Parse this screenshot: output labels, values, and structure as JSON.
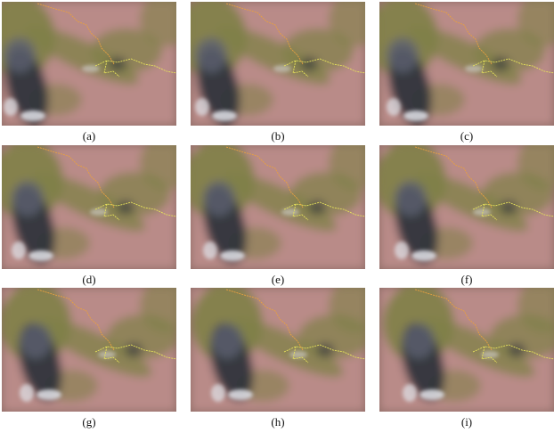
{
  "figure": {
    "panels": [
      {
        "label": "(a)"
      },
      {
        "label": "(b)"
      },
      {
        "label": "(c)"
      },
      {
        "label": "(d)"
      },
      {
        "label": "(e)"
      },
      {
        "label": "(f)"
      },
      {
        "label": "(g)"
      },
      {
        "label": "(h)"
      },
      {
        "label": "(i)"
      }
    ]
  },
  "colors": {
    "land_pink": "#b98b88",
    "cloud_olive": "#7f8047",
    "dark_cloud": "#2a2f3a",
    "bright_cloud": "#dfe2e8",
    "orange_border": "#e8a040",
    "yellow_border": "#e6e25a"
  }
}
